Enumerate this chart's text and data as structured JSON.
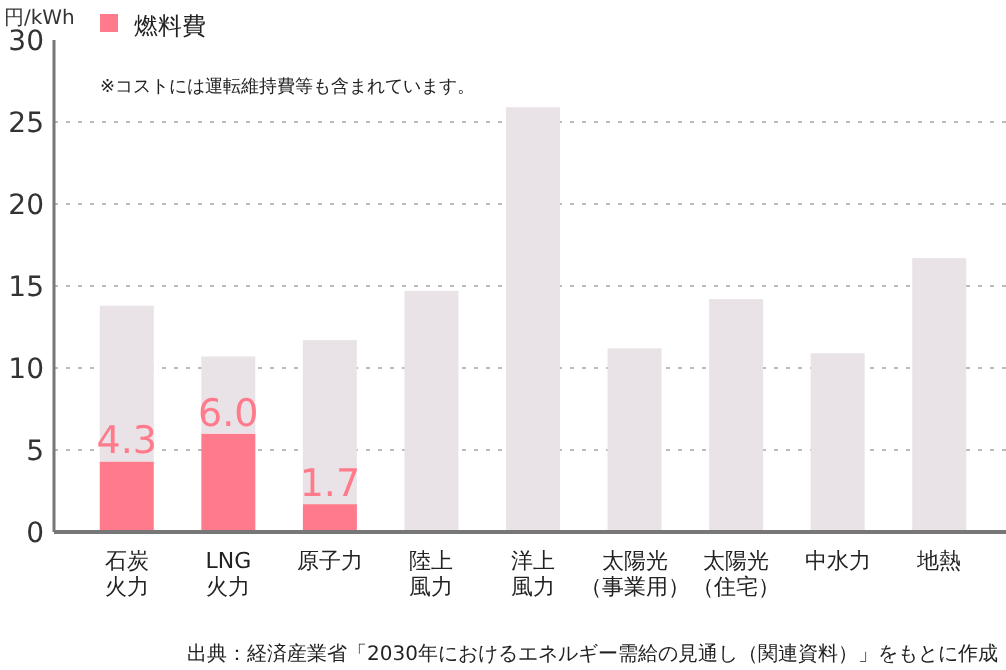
{
  "chart_data": {
    "type": "bar",
    "stacked": true,
    "ylabel": "円/kWh",
    "categories": [
      "石炭火力",
      "LNG火力",
      "原子力",
      "陸上風力",
      "洋上風力",
      "太陽光（事業用）",
      "太陽光（住宅）",
      "中水力",
      "地熱"
    ],
    "series": [
      {
        "name": "燃料費",
        "color": "#ff7b8c",
        "values": [
          4.3,
          6.0,
          1.7,
          null,
          null,
          null,
          null,
          null,
          null
        ],
        "value_labels": [
          "4.3",
          "6.0",
          "1.7",
          null,
          null,
          null,
          null,
          null,
          null
        ]
      },
      {
        "color": "#e9e3e7",
        "values": [
          9.5,
          4.7,
          10.0,
          14.7,
          25.9,
          11.2,
          14.2,
          10.9,
          16.7
        ]
      }
    ],
    "ylim": [
      0,
      30
    ],
    "yticks": [
      0,
      5,
      10,
      15,
      20,
      25,
      30
    ],
    "grid": "y",
    "legend": "top left",
    "annotations": [
      "※コストには運転維持費等も含まれています。",
      "出典：経済産業省「2030年におけるエネルギー需給の見通し（関連資料）」をもとに作成"
    ]
  }
}
